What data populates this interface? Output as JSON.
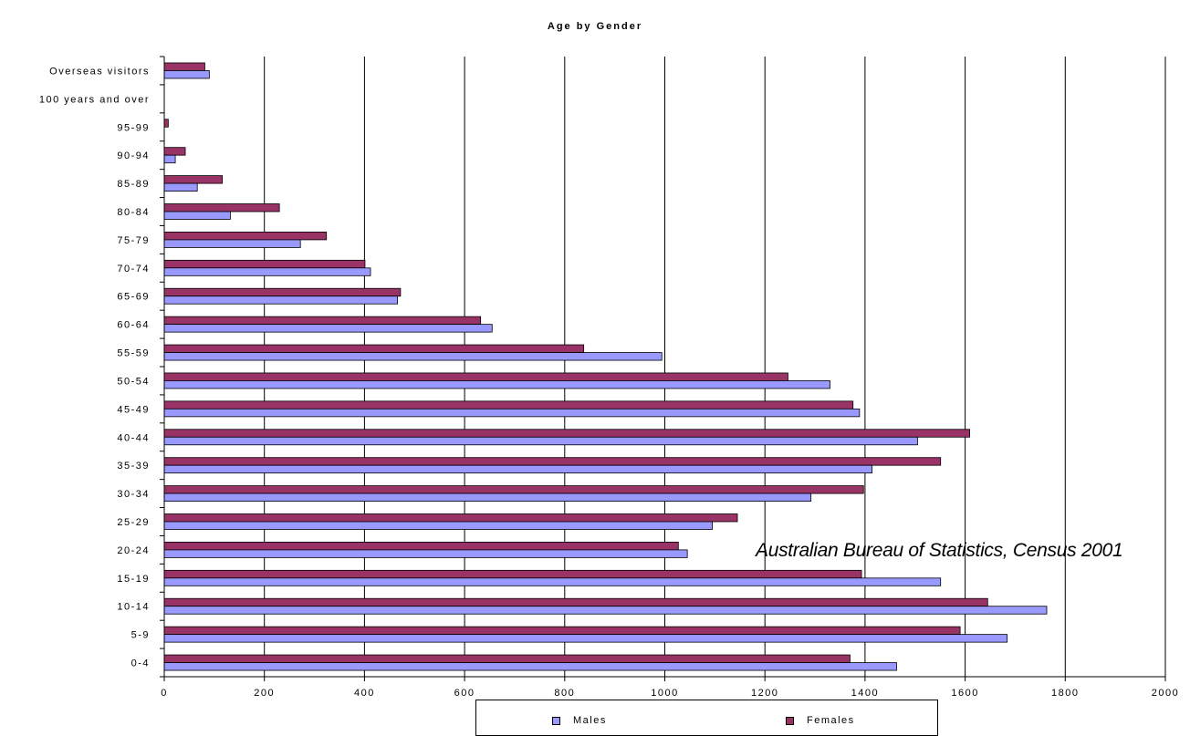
{
  "chart_data": {
    "type": "bar",
    "orientation": "horizontal",
    "title": "Age by Gender",
    "annotation": "Australian Bureau of Statistics, Census 2001",
    "categories": [
      "0-4",
      "5-9",
      "10-14",
      "15-19",
      "20-24",
      "25-29",
      "30-34",
      "35-39",
      "40-44",
      "45-49",
      "50-54",
      "55-59",
      "60-64",
      "65-69",
      "70-74",
      "75-79",
      "80-84",
      "85-89",
      "90-94",
      "95-99",
      "100 years and over",
      "Overseas visitors"
    ],
    "series": [
      {
        "name": "Males",
        "color": "#9999ff",
        "values": [
          1463,
          1684,
          1763,
          1551,
          1045,
          1095,
          1292,
          1414,
          1505,
          1389,
          1330,
          994,
          655,
          466,
          412,
          272,
          132,
          66,
          22,
          0,
          0,
          90
        ]
      },
      {
        "name": "Females",
        "color": "#993366",
        "values": [
          1370,
          1590,
          1645,
          1393,
          1027,
          1145,
          1397,
          1551,
          1609,
          1376,
          1246,
          838,
          632,
          472,
          401,
          324,
          230,
          116,
          42,
          8,
          0,
          81
        ]
      }
    ],
    "xlim": [
      0,
      2000
    ],
    "xticks": [
      "0",
      "200",
      "400",
      "600",
      "800",
      "1000",
      "1200",
      "1400",
      "1600",
      "1800",
      "2000"
    ],
    "grid": true,
    "legend_position": "bottom"
  }
}
